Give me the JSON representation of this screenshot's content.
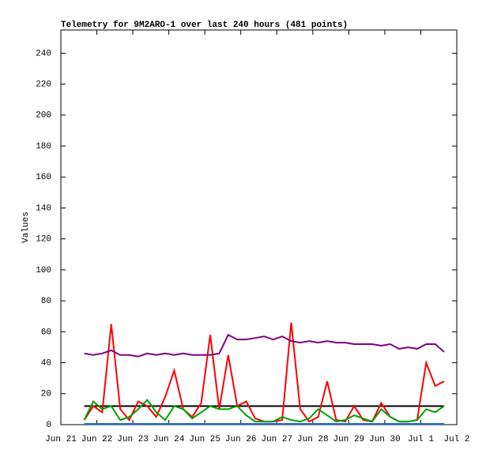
{
  "chart_data": {
    "type": "line",
    "title": "Telemetry for 9M2ARO-1 over last 240 hours (481 points)",
    "y_label": "Values",
    "x": [
      0.65,
      0.9,
      1.15,
      1.4,
      1.65,
      1.9,
      2.15,
      2.4,
      2.65,
      2.9,
      3.15,
      3.4,
      3.65,
      3.9,
      4.15,
      4.4,
      4.65,
      4.9,
      5.15,
      5.4,
      5.65,
      5.9,
      6.15,
      6.4,
      6.65,
      6.9,
      7.15,
      7.4,
      7.65,
      7.9,
      8.15,
      8.4,
      8.65,
      8.9,
      9.15,
      9.4,
      9.65,
      9.9,
      10.15,
      10.4,
      10.65
    ],
    "series": [
      {
        "color": "#1f6fcf",
        "values": [
          0.5,
          0.5,
          0.5,
          0.5,
          0.5,
          0.5,
          0.5,
          0.5,
          0.5,
          0.5,
          0.5,
          0.5,
          0.5,
          0.5,
          0.5,
          0.5,
          0.5,
          0.5,
          0.5,
          0.5,
          0.5,
          0.5,
          0.5,
          0.5,
          0.5,
          0.5,
          0.5,
          0.5,
          0.5,
          0.5,
          0.5,
          0.5,
          0.5,
          0.5,
          0.5,
          0.5,
          0.5,
          0.5,
          0.5,
          0.5,
          0.5
        ]
      },
      {
        "color": "#000000",
        "values": [
          12,
          12,
          12,
          12,
          12,
          12,
          12,
          12,
          12,
          12,
          12,
          12,
          12,
          12,
          12,
          12,
          12,
          12,
          12,
          12,
          12,
          12,
          12,
          12,
          12,
          12,
          12,
          12,
          12,
          12,
          12,
          12,
          12,
          12,
          12,
          12,
          12,
          12,
          12,
          12,
          12
        ]
      },
      {
        "color": "#ff0000",
        "values": [
          3,
          12,
          8,
          65,
          10,
          3,
          15,
          12,
          5,
          18,
          35,
          10,
          5,
          14,
          58,
          10,
          45,
          12,
          15,
          4,
          2,
          2,
          3,
          66,
          10,
          2,
          5,
          28,
          3,
          2,
          12,
          3,
          2,
          14,
          5,
          2,
          2,
          3,
          40,
          25,
          28
        ]
      },
      {
        "color": "#00a000",
        "values": [
          3,
          15,
          10,
          12,
          3,
          5,
          10,
          16,
          8,
          3,
          12,
          10,
          4,
          8,
          12,
          10,
          10,
          12,
          6,
          2,
          2,
          2,
          5,
          3,
          2,
          4,
          10,
          6,
          2,
          3,
          6,
          4,
          2,
          10,
          5,
          2,
          2,
          3,
          10,
          8,
          12
        ]
      },
      {
        "color": "#800080",
        "values": [
          46,
          45,
          46,
          48,
          45,
          45,
          44,
          46,
          45,
          46,
          45,
          46,
          45,
          45,
          45,
          46,
          58,
          55,
          55,
          56,
          57,
          55,
          57,
          54,
          53,
          54,
          53,
          54,
          53,
          53,
          52,
          52,
          52,
          51,
          52,
          49,
          50,
          49,
          52,
          52,
          47
        ]
      }
    ],
    "xlim": [
      0,
      11
    ],
    "xticks": [
      {
        "value": 0,
        "label": "Jun 21"
      },
      {
        "value": 1,
        "label": "Jun 22"
      },
      {
        "value": 2,
        "label": "Jun 23"
      },
      {
        "value": 3,
        "label": "Jun 24"
      },
      {
        "value": 4,
        "label": "Jun 25"
      },
      {
        "value": 5,
        "label": "Jun 26"
      },
      {
        "value": 6,
        "label": "Jun 27"
      },
      {
        "value": 7,
        "label": "Jun 28"
      },
      {
        "value": 8,
        "label": "Jun 29"
      },
      {
        "value": 9,
        "label": "Jun 30"
      },
      {
        "value": 10,
        "label": "Jul 1"
      },
      {
        "value": 11,
        "label": "Jul 2"
      }
    ],
    "ylim": [
      0,
      255
    ],
    "yticks": [
      0,
      20,
      40,
      60,
      80,
      100,
      120,
      140,
      160,
      180,
      200,
      220,
      240
    ]
  }
}
